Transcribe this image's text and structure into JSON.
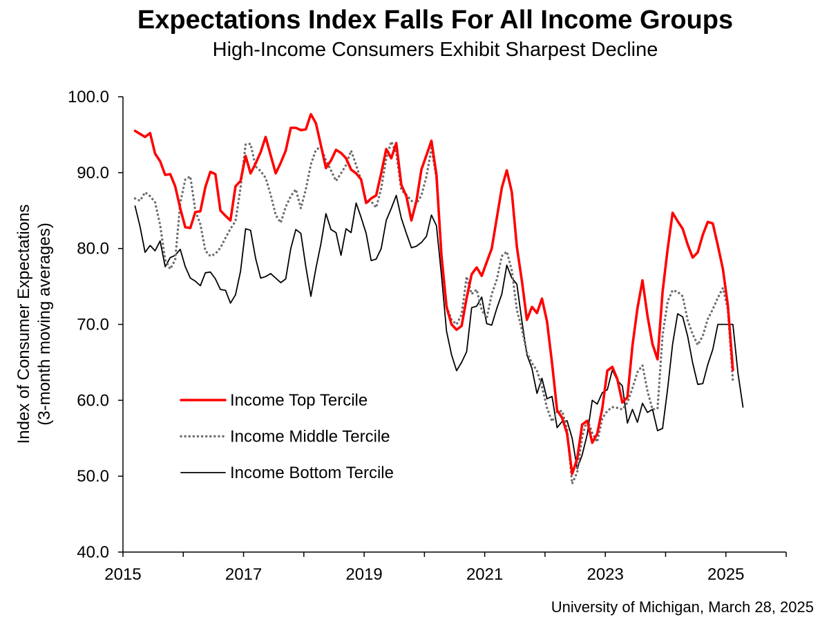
{
  "chart_data": {
    "type": "line",
    "title": "Expectations Index Falls For All Income Groups",
    "subtitle": "High-Income Consumers Exhibit Sharpest Decline",
    "ylabel_line1": "Index of Consumer Expectations",
    "ylabel_line2": "(3-month moving averages)",
    "xlabel": "",
    "source": "University of Michigan, March 28, 2025",
    "xlim": [
      2015,
      2026
    ],
    "ylim": [
      40,
      100
    ],
    "x_start": 2015.2,
    "x_step": 0.0833333,
    "x_ticks": [
      2015,
      2016,
      2017,
      2018,
      2019,
      2020,
      2021,
      2022,
      2023,
      2024,
      2025,
      2026
    ],
    "x_tick_labels": [
      {
        "value": 2015,
        "label": "2015"
      },
      {
        "value": 2017,
        "label": "2017"
      },
      {
        "value": 2019,
        "label": "2019"
      },
      {
        "value": 2021,
        "label": "2021"
      },
      {
        "value": 2023,
        "label": "2023"
      },
      {
        "value": 2025,
        "label": "2025"
      }
    ],
    "y_ticks": [
      {
        "value": 40,
        "label": "40.0"
      },
      {
        "value": 50,
        "label": "50.0"
      },
      {
        "value": 60,
        "label": "60.0"
      },
      {
        "value": 70,
        "label": "70.0"
      },
      {
        "value": 80,
        "label": "80.0"
      },
      {
        "value": 90,
        "label": "90.0"
      },
      {
        "value": 100,
        "label": "100.0"
      }
    ],
    "series": [
      {
        "name": "Income Top Tercile",
        "color": "#ff0000",
        "style": "solid",
        "values": [
          95.5,
          95.1,
          94.7,
          95.2,
          92.5,
          91.5,
          89.7,
          89.8,
          88.2,
          85.3,
          82.8,
          82.7,
          84.8,
          84.9,
          88.1,
          90.1,
          89.8,
          85.0,
          84.3,
          83.7,
          88.2,
          88.9,
          92.2,
          89.9,
          91.2,
          92.7,
          94.7,
          92.3,
          89.9,
          91.3,
          92.9,
          95.9,
          95.9,
          95.6,
          95.7,
          97.7,
          96.5,
          93.6,
          90.6,
          91.6,
          93.0,
          92.6,
          91.9,
          90.4,
          89.9,
          89.1,
          86.0,
          86.6,
          87.0,
          89.9,
          93.1,
          91.9,
          93.9,
          88.4,
          86.9,
          83.7,
          86.2,
          90.4,
          92.3,
          94.2,
          89.7,
          79.0,
          72.3,
          70.0,
          69.3,
          69.8,
          73.5,
          76.6,
          77.5,
          76.4,
          78.2,
          80.0,
          84.0,
          88.0,
          90.3,
          87.4,
          80.2,
          75.7,
          70.6,
          72.3,
          71.5,
          73.4,
          70.4,
          64.9,
          58.7,
          57.7,
          55.6,
          50.3,
          52.3,
          56.8,
          57.3,
          54.4,
          55.6,
          58.9,
          63.9,
          64.4,
          62.8,
          59.7,
          60.4,
          67.2,
          72.1,
          75.8,
          71.1,
          67.4,
          65.4,
          74.3,
          79.9,
          84.7,
          83.6,
          82.6,
          80.5,
          78.8,
          79.5,
          81.8,
          83.5,
          83.3,
          80.4,
          77.3,
          72.5,
          64.0
        ]
      },
      {
        "name": "Income Middle Tercile",
        "color": "#6e6e6e",
        "style": "dotted",
        "values": [
          86.6,
          86.3,
          87.4,
          86.9,
          86.1,
          83.1,
          78.5,
          77.3,
          78.5,
          86.0,
          89.1,
          89.5,
          85.0,
          83.2,
          79.7,
          79.0,
          79.3,
          80.1,
          81.4,
          82.6,
          83.6,
          88.0,
          93.7,
          93.8,
          90.8,
          90.2,
          89.3,
          87.1,
          84.4,
          83.4,
          85.5,
          86.9,
          87.8,
          85.3,
          87.8,
          91.1,
          93.0,
          93.4,
          91.6,
          90.3,
          88.9,
          89.9,
          91.0,
          92.9,
          91.0,
          89.0,
          86.2,
          86.2,
          85.4,
          87.9,
          91.9,
          94.1,
          92.6,
          87.7,
          87.1,
          86.3,
          85.9,
          87.0,
          89.5,
          93.2,
          89.3,
          78.9,
          72.4,
          70.6,
          70.0,
          71.3,
          76.3,
          74.0,
          74.6,
          71.9,
          70.8,
          74.0,
          75.9,
          79.0,
          79.6,
          77.1,
          71.9,
          69.3,
          66.3,
          64.9,
          63.9,
          61.8,
          59.0,
          57.2,
          58.5,
          58.6,
          56.2,
          49.0,
          50.5,
          55.2,
          57.5,
          55.7,
          54.5,
          57.6,
          58.6,
          59.1,
          59.0,
          58.8,
          59.7,
          61.6,
          63.7,
          64.6,
          61.2,
          58.8,
          58.9,
          68.6,
          73.0,
          74.5,
          74.3,
          73.7,
          70.5,
          68.7,
          67.3,
          68.5,
          70.7,
          72.0,
          73.5,
          74.8,
          72.0,
          62.5
        ]
      },
      {
        "name": "Income Bottom Tercile",
        "color": "#000000",
        "style": "solid-thin",
        "values": [
          85.6,
          82.9,
          79.5,
          80.4,
          79.7,
          81.0,
          77.6,
          78.8,
          79.1,
          79.9,
          77.6,
          76.1,
          75.7,
          75.1,
          76.8,
          76.9,
          76.0,
          74.6,
          74.5,
          72.8,
          73.9,
          77.0,
          82.6,
          82.4,
          78.7,
          76.1,
          76.3,
          76.7,
          76.1,
          75.5,
          76.0,
          80.0,
          82.5,
          82.0,
          77.6,
          73.7,
          77.4,
          80.6,
          84.6,
          82.5,
          82.1,
          79.1,
          82.6,
          82.1,
          86.0,
          84.1,
          82.0,
          78.4,
          78.6,
          80.0,
          83.7,
          85.3,
          87.0,
          84.0,
          82.0,
          80.1,
          80.3,
          80.8,
          81.6,
          84.4,
          83.0,
          76.4,
          69.1,
          66.0,
          63.9,
          65.0,
          66.4,
          72.2,
          72.4,
          73.6,
          70.1,
          69.9,
          72.1,
          74.0,
          77.8,
          76.1,
          75.3,
          70.4,
          66.0,
          64.2,
          60.9,
          62.9,
          60.2,
          60.5,
          56.4,
          57.2,
          57.3,
          55.0,
          51.0,
          52.8,
          55.5,
          60.0,
          59.5,
          61.0,
          61.4,
          64.0,
          62.6,
          61.9,
          57.0,
          58.8,
          57.1,
          59.6,
          58.4,
          58.8,
          56.0,
          56.3,
          61.5,
          67.4,
          71.4,
          71.0,
          68.4,
          64.9,
          62.1,
          62.2,
          64.7,
          66.7,
          70.0,
          70.0,
          70.0,
          70.0,
          63.6,
          59.1
        ]
      }
    ],
    "legend": {
      "placement": "lower-left",
      "entries": [
        {
          "label": "Income Top Tercile",
          "style": "solid",
          "color": "#ff0000"
        },
        {
          "label": "Income Middle Tercile",
          "style": "dotted",
          "color": "#6e6e6e"
        },
        {
          "label": "Income Bottom Tercile",
          "style": "solid-thin",
          "color": "#000000"
        }
      ]
    },
    "grid": false
  }
}
